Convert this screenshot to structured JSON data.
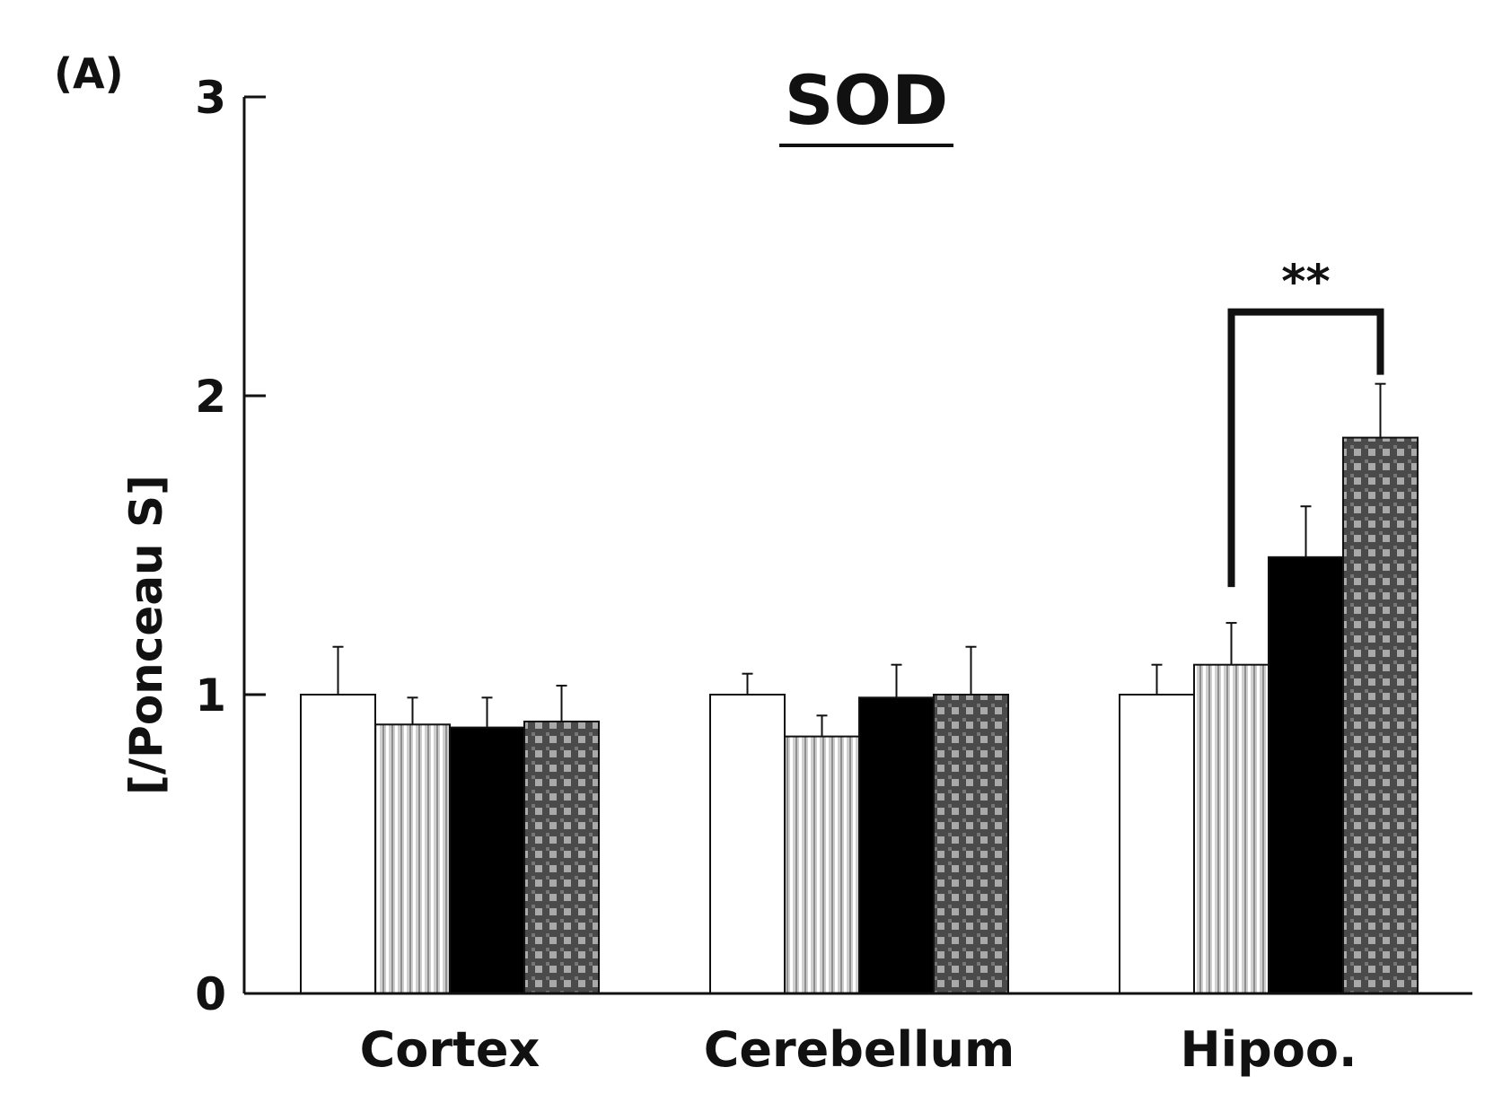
{
  "panel_label": "(A)",
  "chart_data": {
    "type": "bar",
    "title": "SOD",
    "ylabel": "[/Ponceau S]",
    "xlabel": "",
    "ylim": [
      0,
      3
    ],
    "yticks": [
      "0",
      "1",
      "2",
      "3"
    ],
    "categories": [
      "Cortex",
      "Cerebellum",
      "Hipoo."
    ],
    "series": [
      {
        "values": [
          1.0,
          1.0,
          1.0
        ],
        "errors": [
          0.16,
          0.07,
          0.1
        ],
        "fill": "white"
      },
      {
        "values": [
          0.9,
          0.86,
          1.1
        ],
        "errors": [
          0.09,
          0.07,
          0.14
        ],
        "fill": "vertical-stripes"
      },
      {
        "values": [
          0.89,
          0.99,
          1.46
        ],
        "errors": [
          0.1,
          0.11,
          0.17
        ],
        "fill": "black"
      },
      {
        "values": [
          0.91,
          1.0,
          1.86
        ],
        "errors": [
          0.12,
          0.16,
          0.18
        ],
        "fill": "checkered"
      }
    ],
    "annotations": [
      {
        "text": "**",
        "category": "Hipoo.",
        "from_series": 1,
        "to_series": 3
      }
    ],
    "grid": false
  }
}
